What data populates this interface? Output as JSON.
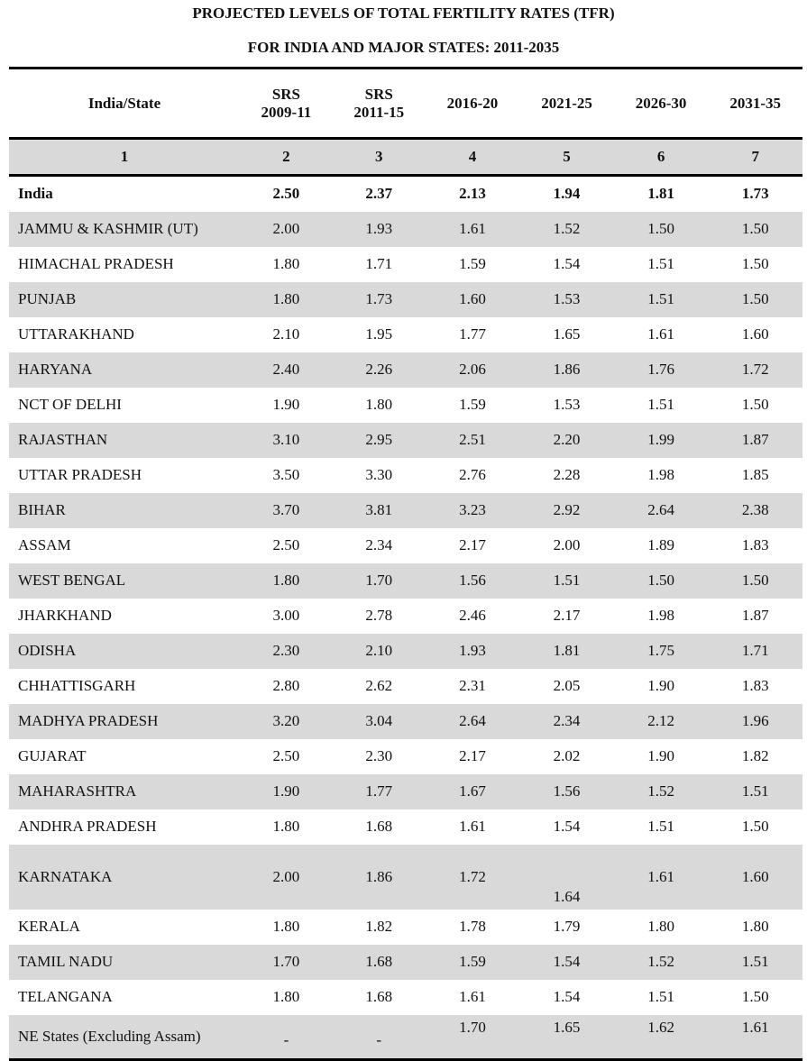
{
  "title_line1": "PROJECTED LEVELS OF TOTAL FERTILITY RATES (TFR)",
  "title_line2": "FOR INDIA AND MAJOR STATES: 2011-2035",
  "columns": [
    {
      "line1": "India/State",
      "line2": ""
    },
    {
      "line1": "SRS",
      "line2": "2009-11"
    },
    {
      "line1": "SRS",
      "line2": "2011-15"
    },
    {
      "line1": "2016-20",
      "line2": ""
    },
    {
      "line1": "2021-25",
      "line2": ""
    },
    {
      "line1": "2026-30",
      "line2": ""
    },
    {
      "line1": "2031-35",
      "line2": ""
    }
  ],
  "column_numbers": [
    "1",
    "2",
    "3",
    "4",
    "5",
    "6",
    "7"
  ],
  "rows": [
    [
      "India",
      "2.50",
      "2.37",
      "2.13",
      "1.94",
      "1.81",
      "1.73"
    ],
    [
      "JAMMU & KASHMIR (UT)",
      "2.00",
      "1.93",
      "1.61",
      "1.52",
      "1.50",
      "1.50"
    ],
    [
      "HIMACHAL PRADESH",
      "1.80",
      "1.71",
      "1.59",
      "1.54",
      "1.51",
      "1.50"
    ],
    [
      "PUNJAB",
      "1.80",
      "1.73",
      "1.60",
      "1.53",
      "1.51",
      "1.50"
    ],
    [
      "UTTARAKHAND",
      "2.10",
      "1.95",
      "1.77",
      "1.65",
      "1.61",
      "1.60"
    ],
    [
      "HARYANA",
      "2.40",
      "2.26",
      "2.06",
      "1.86",
      "1.76",
      "1.72"
    ],
    [
      "NCT OF DELHI",
      "1.90",
      "1.80",
      "1.59",
      "1.53",
      "1.51",
      "1.50"
    ],
    [
      "RAJASTHAN",
      "3.10",
      "2.95",
      "2.51",
      "2.20",
      "1.99",
      "1.87"
    ],
    [
      "UTTAR PRADESH",
      "3.50",
      "3.30",
      "2.76",
      "2.28",
      "1.98",
      "1.85"
    ],
    [
      "BIHAR",
      "3.70",
      "3.81",
      "3.23",
      "2.92",
      "2.64",
      "2.38"
    ],
    [
      "ASSAM",
      "2.50",
      "2.34",
      "2.17",
      "2.00",
      "1.89",
      "1.83"
    ],
    [
      "WEST BENGAL",
      "1.80",
      "1.70",
      "1.56",
      "1.51",
      "1.50",
      "1.50"
    ],
    [
      "JHARKHAND",
      "3.00",
      "2.78",
      "2.46",
      "2.17",
      "1.98",
      "1.87"
    ],
    [
      "ODISHA",
      "2.30",
      "2.10",
      "1.93",
      "1.81",
      "1.75",
      "1.71"
    ],
    [
      "CHHATTISGARH",
      "2.80",
      "2.62",
      "2.31",
      "2.05",
      "1.90",
      "1.83"
    ],
    [
      "MADHYA PRADESH",
      "3.20",
      "3.04",
      "2.64",
      "2.34",
      "2.12",
      "1.96"
    ],
    [
      "GUJARAT",
      "2.50",
      "2.30",
      "2.17",
      "2.02",
      "1.90",
      "1.82"
    ],
    [
      "MAHARASHTRA",
      "1.90",
      "1.77",
      "1.67",
      "1.56",
      "1.52",
      "1.51"
    ],
    [
      "ANDHRA PRADESH",
      "1.80",
      "1.68",
      "1.61",
      "1.54",
      "1.51",
      "1.50"
    ],
    [
      "KARNATAKA",
      "2.00",
      "1.86",
      "1.72",
      "1.64",
      "1.61",
      "1.60"
    ],
    [
      "KERALA",
      "1.80",
      "1.82",
      "1.78",
      "1.79",
      "1.80",
      "1.80"
    ],
    [
      "TAMIL NADU",
      "1.70",
      "1.68",
      "1.59",
      "1.54",
      "1.52",
      "1.51"
    ],
    [
      "TELANGANA",
      "1.80",
      "1.68",
      "1.61",
      "1.54",
      "1.51",
      "1.50"
    ],
    [
      "NE States (Excluding Assam)",
      "-",
      "-",
      "1.70",
      "1.65",
      "1.62",
      "1.61"
    ]
  ],
  "colors": {
    "shade": "#d9d9d9",
    "rule": "#000000"
  }
}
